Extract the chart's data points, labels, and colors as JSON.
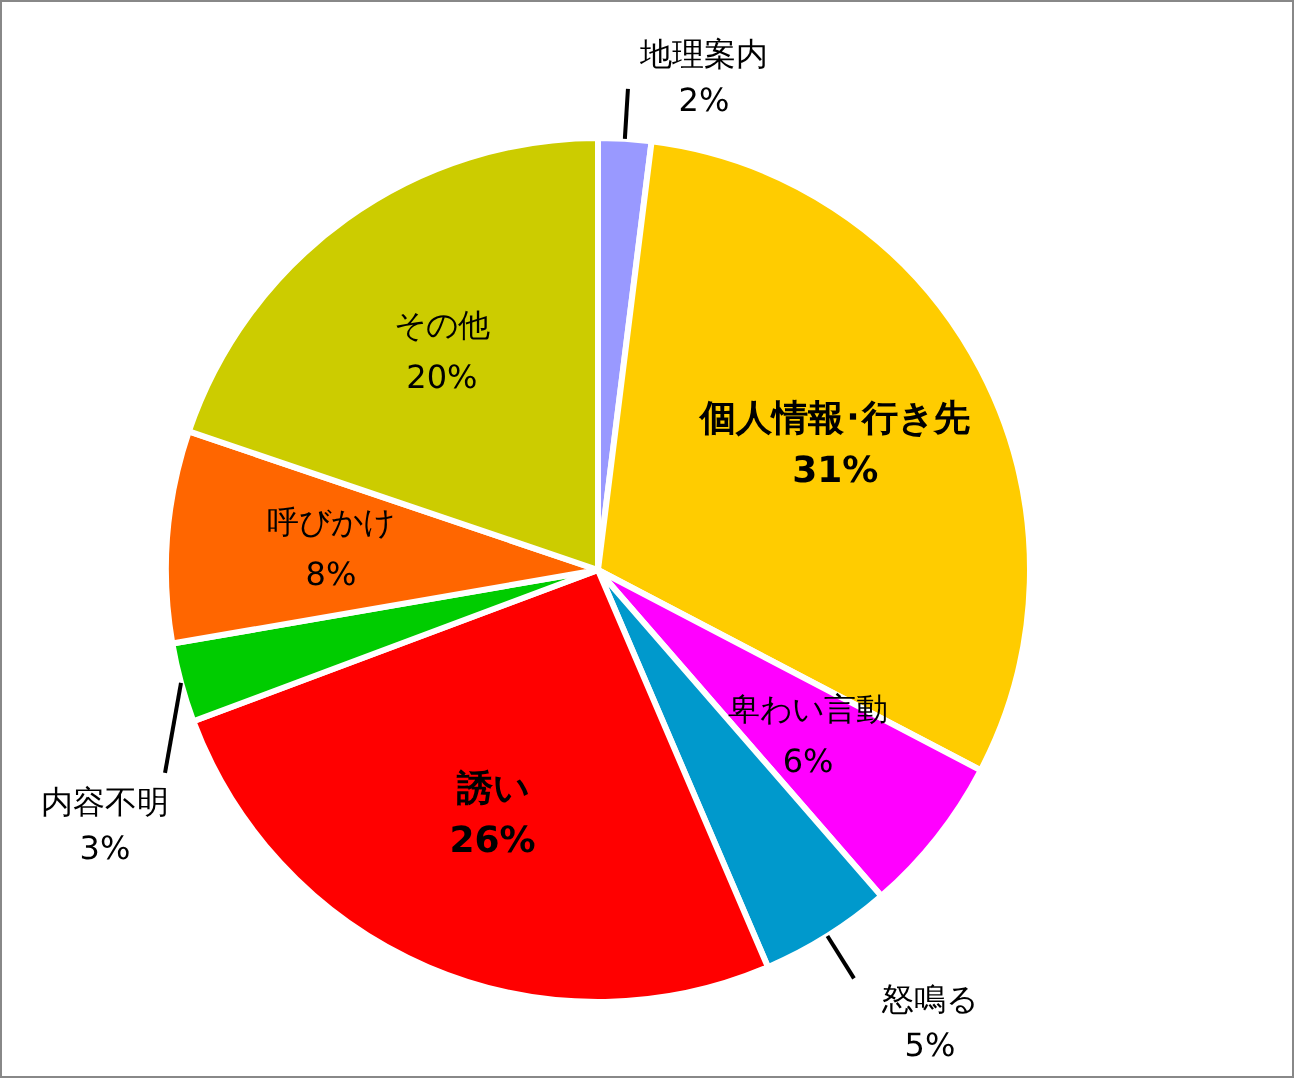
{
  "chart_data": {
    "type": "pie",
    "categories": [
      "地理案内",
      "個人情報･行き先",
      "卑わい言動",
      "怒鳴る",
      "誘い",
      "内容不明",
      "呼びかけ",
      "その他"
    ],
    "values": [
      2,
      31,
      6,
      5,
      26,
      3,
      8,
      20
    ],
    "value_labels": [
      "2%",
      "31%",
      "6%",
      "5%",
      "26%",
      "3%",
      "8%",
      "20%"
    ],
    "colors": [
      "#9999ff",
      "#ffcc00",
      "#ff00ff",
      "#0099cc",
      "#ff0000",
      "#00cc00",
      "#ff6600",
      "#cccc00"
    ]
  }
}
